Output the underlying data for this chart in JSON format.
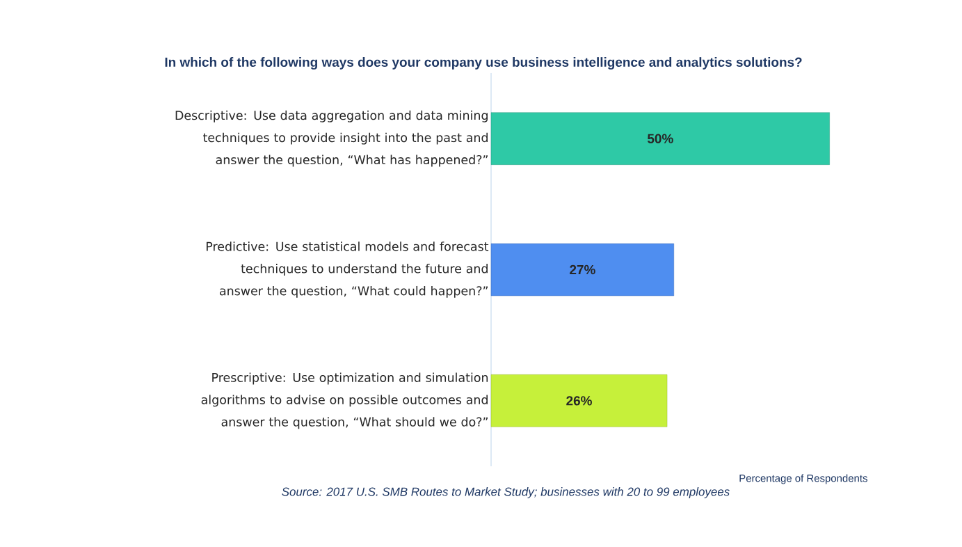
{
  "chart_data": {
    "type": "bar",
    "orientation": "horizontal",
    "title": "In which of the following ways does your company use business intelligence and analytics solutions?",
    "categories": [
      "Descriptive: Use data aggregation and data mining techniques to provide insight into the past and answer the question, “What has happened?”",
      "Predictive: Use statistical models and forecast techniques to understand the future and answer the question, “What could happen?”",
      "Prescriptive: Use optimization and simulation algorithms to advise on possible outcomes and answer the question, “What should we do?”"
    ],
    "values": [
      50,
      27,
      26
    ],
    "value_labels": [
      "50%",
      "27%",
      "26%"
    ],
    "colors": [
      "#2ec9a6",
      "#4f8ef0",
      "#c6f03a"
    ],
    "xlabel": "Percentage of Respondents",
    "annotations": [
      "Source: 2017 U.S. SMB Routes to Market Study; businesses with 20 to 99 employees"
    ]
  }
}
